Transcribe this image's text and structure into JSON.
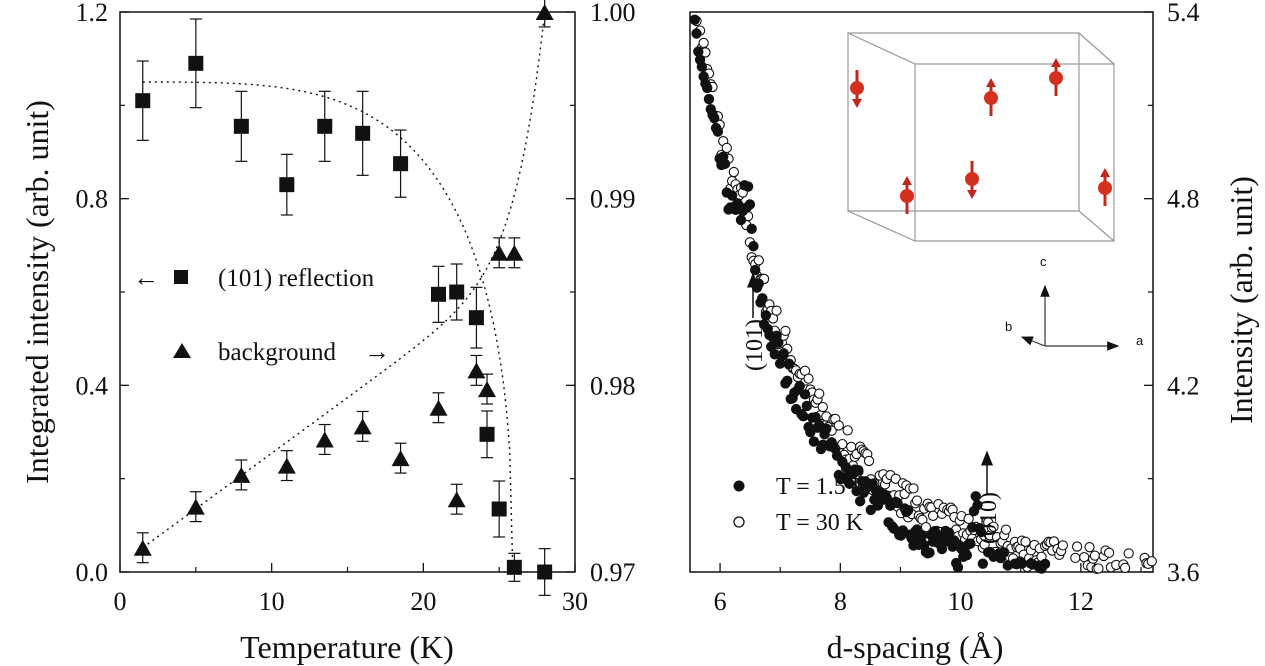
{
  "chart_data": [
    {
      "type": "scatter",
      "xlabel": "Temperature (K)",
      "ylabel": "Integrated intensity (arb. unit)",
      "xlim": [
        0,
        30
      ],
      "ylim": [
        0,
        1.2
      ],
      "y2lim": [
        0.97,
        1.0
      ],
      "x_ticks": [
        "0",
        "10",
        "20",
        "30"
      ],
      "y_ticks": [
        "0.0",
        "0.4",
        "0.8",
        "1.2"
      ],
      "y2_ticks": [
        "0.97",
        "0.98",
        "0.99",
        "1.00"
      ],
      "grid": false,
      "legend": [
        {
          "arrow": "←",
          "label": "(101) reflection"
        },
        {
          "label": "background",
          "arrow": "→"
        }
      ],
      "series": [
        {
          "name": "(101) reflection",
          "axis": "left",
          "marker": "square",
          "x": [
            1.5,
            5,
            8,
            11,
            13.5,
            16,
            18.5,
            21,
            22.2,
            23.5,
            24.2,
            25,
            26,
            28
          ],
          "y": [
            1.01,
            1.09,
            0.955,
            0.83,
            0.955,
            0.94,
            0.875,
            0.595,
            0.6,
            0.545,
            0.295,
            0.135,
            0.01,
            0.0
          ],
          "err": [
            0.085,
            0.095,
            0.075,
            0.065,
            0.075,
            0.09,
            0.072,
            0.06,
            0.06,
            0.065,
            0.05,
            0.06,
            0.03,
            0.05
          ]
        },
        {
          "name": "background",
          "axis": "right",
          "marker": "triangle",
          "x": [
            1.5,
            5,
            8,
            11,
            13.5,
            16,
            18.5,
            21,
            22.2,
            23.5,
            24.2,
            25,
            26,
            28
          ],
          "y": [
            0.9713,
            0.9735,
            0.9752,
            0.9757,
            0.9771,
            0.9778,
            0.9761,
            0.9788,
            0.9739,
            0.9808,
            0.9798,
            0.9871,
            0.9871,
            1.0
          ],
          "err": [
            0.0008,
            0.0008,
            0.0008,
            0.0008,
            0.0008,
            0.0008,
            0.0008,
            0.0008,
            0.0008,
            0.0008,
            0.0008,
            0.0008,
            0.0008,
            0.0008
          ]
        }
      ]
    },
    {
      "type": "scatter",
      "xlabel": "d-spacing (Å)",
      "ylabel": "Intensity (arb. unit)",
      "xlim": [
        5.5,
        13.2
      ],
      "ylim": [
        3.6,
        5.4
      ],
      "x_ticks": [
        "6",
        "8",
        "10",
        "12"
      ],
      "y_ticks": [
        "3.6",
        "4.2",
        "4.8",
        "5.4"
      ],
      "grid": false,
      "legend": [
        {
          "marker": "filled-circle",
          "label": "T = 1.5 K"
        },
        {
          "marker": "open-circle",
          "label": "T = 30 K"
        }
      ],
      "annotations": [
        "(101)",
        "(010)"
      ],
      "inset": {
        "axis_labels": [
          "c",
          "b",
          "a"
        ]
      },
      "series": [
        {
          "name": "T = 1.5 K",
          "marker": "filled-circle",
          "curve": {
            "A": 2.6,
            "B": 3.2,
            "x0": 4.97,
            "base": 3.4
          },
          "peaks": [
            [
              6.45,
              0.22,
              0.12
            ],
            [
              10.25,
              0.22,
              0.09
            ]
          ]
        },
        {
          "name": "T = 30 K",
          "marker": "open-circle",
          "curve": {
            "A": 2.6,
            "B": 3.2,
            "x0": 4.97,
            "base": 3.48
          },
          "peaks": [
            [
              6.4,
              0.06,
              0.15
            ]
          ]
        }
      ]
    }
  ]
}
